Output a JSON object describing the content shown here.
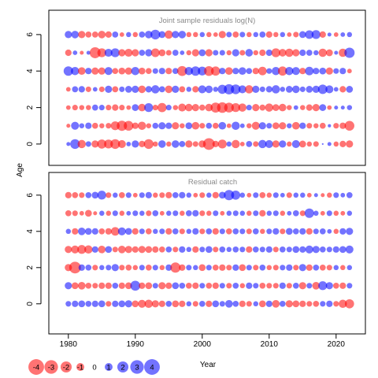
{
  "colors": {
    "negative": "#ff0000",
    "positive": "#0000ff",
    "frame": "#000000",
    "panel_title": "#8a8a8a"
  },
  "chart_data": [
    {
      "type": "scatter",
      "subtype": "bubble-residuals",
      "title": "Joint sample residuals log(N)",
      "xlabel": "Year",
      "ylabel": "Age",
      "xlim": [
        1977,
        2025
      ],
      "ylim": [
        -1,
        7
      ],
      "yticks": [
        "0",
        "2",
        "4",
        "6"
      ],
      "grid": false,
      "years": [
        1980,
        1981,
        1982,
        1983,
        1984,
        1985,
        1986,
        1987,
        1988,
        1989,
        1990,
        1991,
        1992,
        1993,
        1994,
        1995,
        1996,
        1997,
        1998,
        1999,
        2000,
        2001,
        2002,
        2003,
        2004,
        2005,
        2006,
        2007,
        2008,
        2009,
        2010,
        2011,
        2012,
        2013,
        2014,
        2015,
        2016,
        2017,
        2018,
        2019,
        2020,
        2021,
        2022
      ],
      "series": [
        {
          "age": 0,
          "residuals": [
            0.3,
            1.8,
            -1.3,
            0.6,
            -1.0,
            -1.6,
            -1.5,
            -1.8,
            -1.2,
            0.4,
            1.0,
            -0.8,
            -1.8,
            -0.5,
            1.1,
            -0.5,
            1.1,
            0.7,
            -1.0,
            -0.6,
            -1.0,
            -2.6,
            -0.8,
            -1.5,
            0.5,
            -1.3,
            -0.4,
            0.7,
            -0.6,
            1.3,
            1.2,
            -1.0,
            1.0,
            -0.5,
            1.2,
            -0.9,
            -0.5,
            -0.6,
            0.0,
            0.3,
            -0.5,
            -0.8,
            -1.0
          ]
        },
        {
          "age": 1,
          "residuals": [
            -0.3,
            1.2,
            0.5,
            0.8,
            -0.7,
            -0.5,
            -0.6,
            -1.5,
            -2.0,
            -1.8,
            -0.8,
            -1.3,
            -0.5,
            0.7,
            1.0,
            0.8,
            -1.0,
            -0.5,
            0.9,
            -1.1,
            -0.6,
            0.7,
            -0.7,
            1.1,
            -0.4,
            1.3,
            0.4,
            -0.5,
            -1.2,
            1.0,
            0.6,
            -0.9,
            -1.0,
            0.5,
            -1.1,
            0.8,
            -0.6,
            -0.5,
            -0.7,
            0.2,
            -0.6,
            -0.8,
            -1.8
          ]
        },
        {
          "age": 2,
          "residuals": [
            -0.4,
            -0.6,
            -0.5,
            -0.5,
            0.7,
            0.6,
            -0.6,
            -0.8,
            -0.6,
            -0.4,
            0.9,
            -1.1,
            1.5,
            -0.6,
            -1.6,
            0.6,
            -0.5,
            -1.2,
            -1.1,
            -1.0,
            -0.7,
            -1.1,
            -1.9,
            -2.1,
            -1.8,
            -1.5,
            -1.3,
            0.6,
            -1.0,
            -0.7,
            -1.3,
            -0.9,
            -1.1,
            -0.5,
            0.4,
            -0.5,
            -0.8,
            -1.0,
            0.9,
            -0.4,
            0.3,
            0.3,
            0.5
          ]
        },
        {
          "age": 3,
          "residuals": [
            -0.4,
            0.7,
            0.8,
            -0.6,
            0.4,
            -0.6,
            1.0,
            -0.7,
            0.6,
            0.9,
            1.0,
            -1.1,
            0.8,
            1.3,
            0.7,
            -1.1,
            1.0,
            -0.7,
            0.5,
            -0.8,
            1.2,
            1.1,
            0.5,
            1.6,
            2.0,
            1.8,
            1.2,
            -1.3,
            1.0,
            0.6,
            0.8,
            1.3,
            0.5,
            0.9,
            1.1,
            0.6,
            0.9,
            1.0,
            1.7,
            1.2,
            0.4,
            -0.8,
            0.9
          ]
        },
        {
          "age": 4,
          "residuals": [
            1.7,
            1.3,
            -1.1,
            0.8,
            -1.0,
            -1.0,
            1.2,
            -0.7,
            -0.9,
            -1.0,
            1.3,
            -0.9,
            -0.7,
            0.6,
            0.8,
            -0.8,
            0.7,
            -1.9,
            1.3,
            1.7,
            1.5,
            -1.8,
            -1.6,
            0.8,
            -1.1,
            0.8,
            1.1,
            0.7,
            -0.8,
            -1.4,
            0.6,
            1.3,
            -1.6,
            1.3,
            1.2,
            -0.8,
            1.4,
            0.8,
            0.9,
            -1.0,
            0.6,
            0.8,
            -0.4
          ]
        },
        {
          "age": 5,
          "residuals": [
            -0.8,
            0.4,
            -0.3,
            0.3,
            -2.3,
            -1.5,
            1.2,
            1.5,
            -1.0,
            -1.2,
            -1.0,
            0.7,
            1.0,
            -1.4,
            -0.9,
            -0.6,
            0.7,
            0.4,
            -0.5,
            -1.0,
            0.9,
            -1.0,
            0.6,
            0.6,
            -0.5,
            1.0,
            -0.6,
            1.1,
            -0.5,
            -0.8,
            0.8,
            -1.5,
            -1.1,
            -1.3,
            -1.0,
            0.8,
            0.7,
            0.5,
            -1.3,
            -0.9,
            0.3,
            -1.3,
            2.0
          ]
        },
        {
          "age": 6,
          "residuals": [
            1.0,
            1.1,
            -1.0,
            -0.7,
            -0.7,
            -1.1,
            -0.8,
            0.7,
            -0.4,
            0.5,
            -0.5,
            0.7,
            1.1,
            1.8,
            0.9,
            -1.3,
            1.0,
            1.1,
            -0.5,
            -0.5,
            0.5,
            -0.5,
            -0.4,
            -1.0,
            0.6,
            -0.7,
            0.6,
            -0.5,
            0.5,
            0.7,
            -0.8,
            -0.5,
            0.5,
            -0.4,
            -0.6,
            0.9,
            1.4,
            1.5,
            -0.8,
            0.3,
            -0.4,
            0.4,
            0.5
          ]
        }
      ]
    },
    {
      "type": "scatter",
      "subtype": "bubble-residuals",
      "title": "Residual catch",
      "xlabel": "Year",
      "ylabel": "Age",
      "xlim": [
        1977,
        2025
      ],
      "ylim": [
        -1,
        7
      ],
      "xticks": [
        "1980",
        "1990",
        "2000",
        "2010",
        "2020"
      ],
      "yticks": [
        "0",
        "2",
        "4",
        "6"
      ],
      "grid": false,
      "years": [
        1980,
        1981,
        1982,
        1983,
        1984,
        1985,
        1986,
        1987,
        1988,
        1989,
        1990,
        1991,
        1992,
        1993,
        1994,
        1995,
        1996,
        1997,
        1998,
        1999,
        2000,
        2001,
        2002,
        2003,
        2004,
        2005,
        2006,
        2007,
        2008,
        2009,
        2010,
        2011,
        2012,
        2013,
        2014,
        2015,
        2016,
        2017,
        2018,
        2019,
        2020,
        2021,
        2022
      ],
      "series": [
        {
          "age": 0,
          "residuals": [
            0.6,
            0.8,
            0.9,
            0.7,
            0.8,
            0.9,
            -0.6,
            0.8,
            0.9,
            1.0,
            -0.9,
            -1.2,
            -1.3,
            -1.0,
            -0.8,
            0.7,
            -0.9,
            -0.8,
            0.5,
            -0.6,
            0.7,
            -0.8,
            0.9,
            0.6,
            1.1,
            0.7,
            -0.8,
            -0.6,
            0.5,
            -0.9,
            0.8,
            -1.1,
            0.7,
            -1.0,
            -0.9,
            -0.8,
            -0.6,
            -0.7,
            0.6,
            0.8,
            -0.6,
            -1.3,
            -1.6
          ]
        },
        {
          "age": 1,
          "residuals": [
            1.0,
            -0.9,
            -1.1,
            -0.7,
            -0.6,
            -0.8,
            -0.8,
            0.7,
            -0.8,
            -0.9,
            1.9,
            -0.8,
            -0.9,
            0.6,
            -1.0,
            -0.8,
            0.9,
            0.7,
            -0.7,
            -0.8,
            0.6,
            -0.7,
            -0.8,
            0.6,
            -0.6,
            0.7,
            -0.5,
            0.8,
            0.6,
            -0.7,
            -0.6,
            -0.6,
            0.8,
            -0.6,
            0.7,
            -1.0,
            0.6,
            -1.1,
            1.5,
            1.0,
            -0.7,
            -0.8,
            0.6
          ]
        },
        {
          "age": 2,
          "residuals": [
            -1.0,
            -2.6,
            0.8,
            0.7,
            -0.6,
            0.5,
            0.6,
            1.0,
            -0.6,
            -0.7,
            -0.5,
            0.6,
            -0.7,
            0.6,
            -0.5,
            0.8,
            -2.0,
            -0.8,
            0.6,
            0.5,
            -0.9,
            0.6,
            -0.7,
            -0.8,
            -0.6,
            0.8,
            -0.9,
            0.6,
            -0.6,
            0.7,
            -0.5,
            -0.6,
            0.6,
            0.8,
            -0.6,
            1.0,
            -0.8,
            0.7,
            -0.7,
            -0.6,
            0.5,
            -0.5,
            0.5
          ]
        },
        {
          "age": 3,
          "residuals": [
            -1.0,
            -1.2,
            -1.5,
            -1.3,
            0.8,
            -1.1,
            0.9,
            -0.6,
            -1.1,
            -1.0,
            -0.8,
            -1.0,
            -0.9,
            -0.8,
            -0.7,
            0.7,
            -0.6,
            0.8,
            0.5,
            -0.8,
            0.6,
            0.9,
            -0.6,
            0.7,
            0.5,
            0.7,
            0.6,
            -0.8,
            0.7,
            0.6,
            0.8,
            -0.6,
            0.7,
            0.6,
            0.9,
            0.8,
            1.2,
            1.0,
            0.7,
            0.6,
            0.8,
            0.9,
            1.2
          ]
        },
        {
          "age": 4,
          "residuals": [
            0.5,
            -0.8,
            1.1,
            0.9,
            0.8,
            -0.7,
            -0.8,
            -1.4,
            1.2,
            0.9,
            -0.8,
            0.6,
            -0.7,
            0.5,
            0.6,
            -0.8,
            0.7,
            -0.6,
            0.5,
            0.8,
            -0.6,
            0.7,
            -0.8,
            0.6,
            -0.7,
            0.7,
            0.6,
            -0.6,
            0.7,
            -0.5,
            0.6,
            0.8,
            -0.6,
            0.9,
            0.7,
            0.8,
            -0.8,
            0.6,
            0.7,
            0.4,
            -0.5,
            0.8,
            1.0
          ]
        },
        {
          "age": 5,
          "residuals": [
            -0.7,
            -0.6,
            -0.4,
            -0.9,
            -0.3,
            0.5,
            -0.5,
            0.6,
            -0.5,
            0.4,
            0.6,
            0.5,
            -0.6,
            0.7,
            -0.4,
            0.5,
            0.6,
            -0.5,
            0.7,
            0.8,
            -0.6,
            -0.5,
            0.6,
            -0.4,
            0.5,
            0.6,
            0.5,
            -0.5,
            0.6,
            -0.8,
            0.5,
            0.6,
            -0.5,
            0.4,
            0.7,
            -0.6,
            1.7,
            0.5,
            -0.4,
            0.6,
            -0.5,
            -0.4,
            0.5
          ]
        },
        {
          "age": 6,
          "residuals": [
            -0.8,
            -0.7,
            -0.6,
            0.7,
            0.9,
            1.5,
            -0.6,
            0.5,
            -0.7,
            0.6,
            -0.4,
            0.6,
            0.8,
            -0.5,
            -0.6,
            -0.8,
            0.7,
            0.8,
            0.5,
            -0.4,
            -0.6,
            0.5,
            -0.8,
            0.9,
            2.0,
            1.6,
            0.5,
            -0.4,
            0.6,
            -0.7,
            -0.5,
            0.6,
            0.4,
            -0.6,
            0.5,
            0.5,
            -0.4,
            0.3,
            -0.3,
            -0.5,
            0.6,
            0.4,
            0.7
          ]
        }
      ]
    }
  ],
  "legend": {
    "items": [
      {
        "value": -4,
        "label": "-4"
      },
      {
        "value": -3,
        "label": "-3"
      },
      {
        "value": -2,
        "label": "-2"
      },
      {
        "value": -1,
        "label": "-1"
      },
      {
        "value": 0,
        "label": "0"
      },
      {
        "value": 1,
        "label": "1"
      },
      {
        "value": 2,
        "label": "2"
      },
      {
        "value": 3,
        "label": "3"
      },
      {
        "value": 4,
        "label": "4"
      }
    ]
  }
}
